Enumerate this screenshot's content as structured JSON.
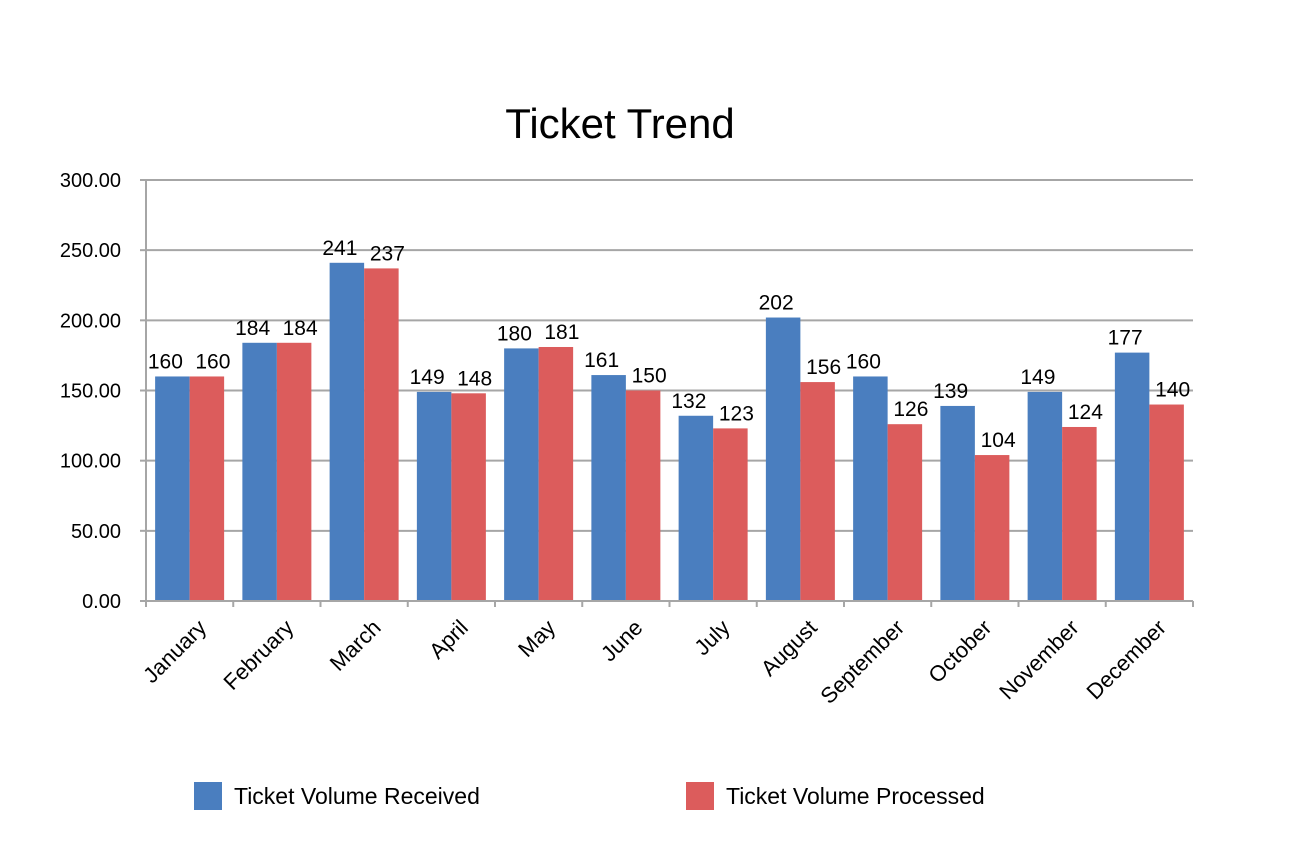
{
  "chart_data": {
    "type": "bar",
    "title": "Ticket Trend",
    "categories": [
      "January",
      "February",
      "March",
      "April",
      "May",
      "June",
      "July",
      "August",
      "September",
      "October",
      "November",
      "December"
    ],
    "series": [
      {
        "name": "Ticket Volume Received",
        "color": "#4a7ebf",
        "values": [
          160,
          184,
          241,
          149,
          180,
          161,
          132,
          202,
          160,
          139,
          149,
          177
        ],
        "labels": [
          "160",
          "184",
          "241",
          "149",
          "180",
          "161",
          "132",
          "202",
          "160",
          "139",
          "149",
          "177"
        ]
      },
      {
        "name": "Ticket Volume Processed",
        "color": "#dc5c5c",
        "values": [
          160,
          184,
          237,
          148,
          181,
          150,
          123,
          156,
          126,
          104,
          124,
          140
        ],
        "labels": [
          "160",
          "184",
          "237",
          "148",
          "181",
          "150",
          "123",
          "156",
          "126",
          "104",
          "124",
          "140"
        ]
      }
    ],
    "ylim": [
      0,
      300
    ],
    "yticks": [
      0,
      50,
      100,
      150,
      200,
      250,
      300
    ],
    "ytick_labels": [
      "0.00",
      "50.00",
      "100.00",
      "150.00",
      "200.00",
      "250.00",
      "300.00"
    ],
    "xlabel": "",
    "ylabel": "",
    "grid": true,
    "legend": "bottom"
  }
}
